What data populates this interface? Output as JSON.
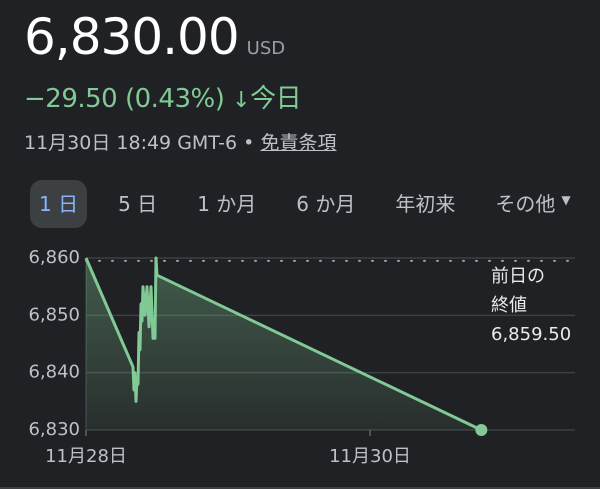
{
  "quote": {
    "price": "6,830.00",
    "currency": "USD",
    "change": "−29.50 (0.43%)",
    "change_icon": "arrow-down-icon",
    "change_period": "今日",
    "timestamp": "11月30日 18:49 GMT-6",
    "separator": "•",
    "disclaimer_link": "免責条項"
  },
  "tabs": [
    {
      "label": "1 日",
      "active": true
    },
    {
      "label": "5 日"
    },
    {
      "label": "1 か月"
    },
    {
      "label": "6 か月"
    },
    {
      "label": "年初来"
    },
    {
      "label": "その他",
      "dropdown": true
    }
  ],
  "colors": {
    "line": "#81c995",
    "negative": "#81c995",
    "active_tab": "#8ab4f8",
    "background": "#202124"
  },
  "previous_close": {
    "label_line1": "前日の",
    "label_line2": "終値",
    "value": "6,859.50"
  },
  "chart_data": {
    "type": "area",
    "ylim": [
      6830,
      6860
    ],
    "yticks": [
      "6,860",
      "6,850",
      "6,840",
      "6,830"
    ],
    "ytick_values": [
      6860,
      6850,
      6840,
      6830
    ],
    "xticks": [
      {
        "label": "11月28日",
        "x": "11-28 00:00"
      },
      {
        "label": "11月30日",
        "x": "11-30 00:00"
      }
    ],
    "xlim": [
      "11-28 00:00",
      "11-30 22:30"
    ],
    "grid": true,
    "previous_close": 6859.5,
    "points": [
      [
        "11-28 00:00",
        6860
      ],
      [
        "11-28 07:57",
        6841
      ],
      [
        "11-28 08:07",
        6837
      ],
      [
        "11-28 08:17",
        6840
      ],
      [
        "11-28 08:27",
        6835
      ],
      [
        "11-28 08:37",
        6839
      ],
      [
        "11-28 08:47",
        6838
      ],
      [
        "11-28 08:57",
        6847
      ],
      [
        "11-28 09:08",
        6844
      ],
      [
        "11-28 09:18",
        6852
      ],
      [
        "11-28 09:28",
        6849
      ],
      [
        "11-28 09:38",
        6855
      ],
      [
        "11-28 09:58",
        6850
      ],
      [
        "11-28 10:19",
        6855
      ],
      [
        "11-28 10:39",
        6848
      ],
      [
        "11-28 10:59",
        6855
      ],
      [
        "11-28 11:19",
        6846
      ],
      [
        "11-28 11:40",
        6846
      ],
      [
        "11-28 11:50",
        6860
      ],
      [
        "11-28 12:00",
        6857
      ],
      [
        "11-30 18:49",
        6830
      ]
    ]
  }
}
